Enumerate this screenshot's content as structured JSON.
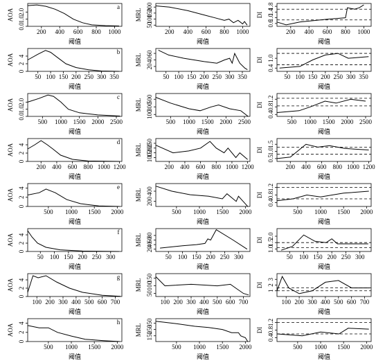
{
  "chart_data": [
    {
      "type": "line",
      "label": "a",
      "ylabel": "AOA",
      "xlabel": "阈值",
      "color": "#000",
      "xlim": [
        50,
        1080
      ],
      "ylim": [
        0,
        3.2
      ],
      "xticks": [
        200,
        400,
        600,
        800,
        1000
      ],
      "yticks": [
        {
          "value": 0,
          "label": "0.0"
        },
        {
          "value": 1,
          "label": "1.0"
        },
        {
          "value": 2,
          "label": "2.0"
        }
      ],
      "x": [
        50,
        150,
        250,
        350,
        450,
        550,
        650,
        750,
        900,
        1050
      ],
      "values": [
        2.9,
        3.0,
        2.8,
        2.4,
        1.8,
        1.0,
        0.5,
        0.2,
        0.1,
        0.05
      ]
    },
    {
      "type": "line",
      "ylabel": "MRL",
      "xlabel": "阈值",
      "color": "#000",
      "xlim": [
        50,
        1080
      ],
      "ylim": [
        40,
        230
      ],
      "xticks": [
        200,
        400,
        600,
        800,
        1000
      ],
      "yticks": [
        50,
        100,
        150,
        200
      ],
      "x": [
        50,
        200,
        400,
        600,
        700,
        800,
        850,
        900,
        950,
        1000,
        1020,
        1050
      ],
      "values": [
        210,
        200,
        170,
        130,
        110,
        90,
        100,
        70,
        90,
        60,
        80,
        50
      ]
    },
    {
      "type": "line",
      "ylabel": "DI",
      "xlabel": "阈值",
      "color": "#000",
      "xlim": [
        50,
        1080
      ],
      "ylim": [
        0.4,
        2.0
      ],
      "xticks": [
        200,
        400,
        600,
        800,
        1000
      ],
      "yticks": [
        0.6,
        {
          "value": 1,
          "label": "1.0"
        },
        1.4,
        1.8
      ],
      "hlines": [
        0.85,
        1.6
      ],
      "x": [
        50,
        150,
        300,
        600,
        800,
        820,
        900,
        950,
        1000
      ],
      "values": [
        0.7,
        0.5,
        0.7,
        0.9,
        1.0,
        1.7,
        1.6,
        1.7,
        1.9
      ]
    },
    {
      "type": "line",
      "label": "b",
      "ylabel": "AOA",
      "xlabel": "阈值",
      "color": "#000",
      "xlim": [
        10,
        380
      ],
      "ylim": [
        0,
        6
      ],
      "xticks": [
        50,
        100,
        150,
        200,
        250,
        300,
        350
      ],
      "yticks": [
        0,
        2,
        4
      ],
      "x": [
        10,
        50,
        80,
        100,
        130,
        160,
        200,
        250,
        300,
        370
      ],
      "values": [
        3,
        4.5,
        5.5,
        5,
        3.5,
        2,
        1,
        0.4,
        0.1,
        0
      ]
    },
    {
      "type": "line",
      "ylabel": "MRL",
      "xlabel": "阈值",
      "color": "#000",
      "xlim": [
        10,
        380
      ],
      "ylim": [
        5,
        75
      ],
      "xticks": [
        50,
        100,
        150,
        200,
        250,
        300,
        350
      ],
      "yticks": [
        20,
        40,
        60
      ],
      "x": [
        20,
        60,
        120,
        200,
        250,
        280,
        300,
        310,
        320,
        340,
        360,
        370
      ],
      "values": [
        70,
        55,
        45,
        35,
        30,
        40,
        45,
        30,
        60,
        30,
        15,
        10
      ]
    },
    {
      "type": "line",
      "ylabel": "DI",
      "xlabel": "阈值",
      "color": "#000",
      "xlim": [
        10,
        380
      ],
      "ylim": [
        0.2,
        1.6
      ],
      "xticks": [
        50,
        100,
        150,
        200,
        250,
        300,
        350
      ],
      "yticks": [
        0.4,
        {
          "value": 1,
          "label": "1.0"
        }
      ],
      "hlines": [
        0.6,
        1.3
      ],
      "x": [
        20,
        100,
        150,
        200,
        250,
        290,
        370
      ],
      "values": [
        0.4,
        0.5,
        0.9,
        1.2,
        1.3,
        1.0,
        1.1
      ]
    },
    {
      "type": "line",
      "label": "c",
      "ylabel": "AOA",
      "xlabel": "阈值",
      "color": "#000",
      "xlim": [
        100,
        2650
      ],
      "ylim": [
        0,
        3.2
      ],
      "xticks": [
        500,
        1000,
        1500,
        2000,
        2500
      ],
      "yticks": [
        {
          "value": 0,
          "label": "0.0"
        },
        {
          "value": 1,
          "label": "1.0"
        },
        {
          "value": 2,
          "label": "2.0"
        }
      ],
      "x": [
        100,
        400,
        650,
        800,
        1000,
        1200,
        1500,
        2000,
        2600
      ],
      "values": [
        2.0,
        2.5,
        3.0,
        2.8,
        2.0,
        1.0,
        0.5,
        0.2,
        0.05
      ]
    },
    {
      "type": "line",
      "ylabel": "MRL",
      "xlabel": "阈值",
      "color": "#000",
      "xlim": [
        100,
        2650
      ],
      "ylim": [
        50,
        650
      ],
      "xticks": [
        500,
        1000,
        1500,
        2000,
        2500
      ],
      "yticks": [
        100,
        300,
        500
      ],
      "x": [
        100,
        500,
        1000,
        1300,
        1600,
        1800,
        2100,
        2400,
        2600
      ],
      "values": [
        550,
        400,
        250,
        200,
        300,
        350,
        250,
        200,
        50
      ]
    },
    {
      "type": "line",
      "ylabel": "DI",
      "xlabel": "阈值",
      "color": "#000",
      "xlim": [
        100,
        2650
      ],
      "ylim": [
        0.3,
        1.5
      ],
      "xticks": [
        500,
        1000,
        1500,
        2000,
        2500
      ],
      "yticks": [
        0.4,
        0.8,
        1.2
      ],
      "hlines": [
        0.85,
        1.25
      ],
      "x": [
        100,
        700,
        1000,
        1400,
        1700,
        2100,
        2500
      ],
      "values": [
        0.5,
        0.6,
        0.8,
        1.1,
        1.0,
        1.2,
        1.1
      ]
    },
    {
      "type": "line",
      "label": "d",
      "ylabel": "AOA",
      "xlabel": "阈值",
      "color": "#000",
      "xlim": [
        30,
        1230
      ],
      "ylim": [
        0,
        5.5
      ],
      "xticks": [
        200,
        400,
        600,
        800,
        1000,
        1200
      ],
      "yticks": [
        0,
        2,
        4
      ],
      "x": [
        30,
        120,
        200,
        280,
        350,
        450,
        600,
        800,
        1200
      ],
      "values": [
        3,
        4,
        5,
        4,
        3,
        1.5,
        0.5,
        0.1,
        0
      ]
    },
    {
      "type": "line",
      "ylabel": "MRL",
      "xlabel": "阈值",
      "color": "#000",
      "xlim": [
        30,
        1230
      ],
      "ylim": [
        60,
        300
      ],
      "xticks": [
        200,
        400,
        600,
        800,
        1000,
        1200
      ],
      "yticks": [
        100,
        150,
        200,
        250
      ],
      "x": [
        30,
        250,
        450,
        600,
        720,
        800,
        900,
        950,
        1050,
        1100,
        1200
      ],
      "values": [
        230,
        150,
        170,
        200,
        270,
        200,
        150,
        200,
        100,
        150,
        80
      ]
    },
    {
      "type": "line",
      "ylabel": "DI",
      "xlabel": "阈值",
      "color": "#000",
      "xlim": [
        30,
        1230
      ],
      "ylim": [
        0.3,
        1.9
      ],
      "xticks": [
        200,
        400,
        600,
        800,
        1000,
        1200
      ],
      "yticks": [
        0.5,
        {
          "value": 1,
          "label": "1.0"
        },
        1.5
      ],
      "hlines": [
        0.8,
        1.3
      ],
      "x": [
        30,
        200,
        400,
        550,
        700,
        900,
        1200
      ],
      "values": [
        0.5,
        0.6,
        1.5,
        1.3,
        1.4,
        1.2,
        1.1
      ]
    },
    {
      "type": "line",
      "label": "e",
      "ylabel": "AOA",
      "xlabel": "阈值",
      "color": "#000",
      "xlim": [
        50,
        2100
      ],
      "ylim": [
        0,
        5
      ],
      "xticks": [
        500,
        1000,
        1500,
        2000
      ],
      "yticks": [
        0,
        2,
        4
      ],
      "x": [
        50,
        300,
        450,
        650,
        900,
        1200,
        1600,
        2050
      ],
      "values": [
        2.5,
        3,
        3.8,
        3,
        1.5,
        0.6,
        0.1,
        0
      ]
    },
    {
      "type": "line",
      "ylabel": "MRL",
      "xlabel": "阈值",
      "color": "#000",
      "xlim": [
        50,
        2100
      ],
      "ylim": [
        100,
        550
      ],
      "xticks": [
        500,
        1000,
        1500,
        2000
      ],
      "yticks": [
        200,
        400
      ],
      "x": [
        50,
        400,
        800,
        1200,
        1500,
        1600,
        1800,
        1850,
        2000,
        2050
      ],
      "values": [
        500,
        400,
        330,
        300,
        250,
        350,
        200,
        300,
        150,
        100
      ]
    },
    {
      "type": "line",
      "ylabel": "DI",
      "xlabel": "阈值",
      "color": "#000",
      "xlim": [
        50,
        2100
      ],
      "ylim": [
        0.2,
        1.4
      ],
      "xticks": [
        500,
        1000,
        1500,
        2000
      ],
      "yticks": [
        0.4,
        0.8,
        1.2
      ],
      "hlines": [
        0.6,
        1.2
      ],
      "x": [
        50,
        400,
        700,
        1000,
        1500,
        2050
      ],
      "values": [
        0.5,
        0.6,
        0.8,
        0.7,
        0.9,
        1.0
      ]
    },
    {
      "type": "line",
      "label": "f",
      "ylabel": "AOA",
      "xlabel": "阈值",
      "color": "#000",
      "xlim": [
        5,
        340
      ],
      "ylim": [
        0,
        5.5
      ],
      "xticks": [
        50,
        100,
        150,
        200,
        250,
        300
      ],
      "yticks": [
        0,
        2,
        4
      ],
      "x": [
        5,
        20,
        40,
        70,
        120,
        200,
        330
      ],
      "values": [
        5,
        3.5,
        2,
        1,
        0.4,
        0.1,
        0
      ]
    },
    {
      "type": "line",
      "ylabel": "MRL",
      "xlabel": "阈值",
      "color": "#000",
      "xlim": [
        5,
        340
      ],
      "ylim": [
        10,
        110
      ],
      "xticks": [
        50,
        100,
        150,
        200,
        250,
        300
      ],
      "yticks": [
        20,
        40,
        60,
        80
      ],
      "x": [
        20,
        100,
        150,
        180,
        190,
        200,
        220,
        280,
        330
      ],
      "values": [
        25,
        35,
        40,
        45,
        65,
        60,
        105,
        60,
        20
      ]
    },
    {
      "type": "line",
      "ylabel": "DI",
      "xlabel": "阈值",
      "color": "#000",
      "xlim": [
        5,
        340
      ],
      "ylim": [
        0.8,
        2.6
      ],
      "xticks": [
        50,
        100,
        150,
        200,
        250,
        300
      ],
      "yticks": [
        {
          "value": 1,
          "label": "1.0"
        },
        1.5,
        {
          "value": 2,
          "label": "2.0"
        }
      ],
      "hlines": [
        1.1,
        1.5
      ],
      "x": [
        20,
        60,
        100,
        140,
        180,
        200,
        220,
        330
      ],
      "values": [
        0.9,
        1.2,
        2.1,
        1.6,
        1.5,
        1.8,
        1.4,
        1.4
      ]
    },
    {
      "type": "line",
      "label": "g",
      "ylabel": "AOA",
      "xlabel": "阈值",
      "color": "#000",
      "xlim": [
        30,
        750
      ],
      "ylim": [
        0,
        5.5
      ],
      "xticks": [
        100,
        200,
        300,
        400,
        500,
        600,
        700
      ],
      "yticks": [
        0,
        2,
        4
      ],
      "x": [
        30,
        70,
        110,
        170,
        250,
        350,
        450,
        600,
        740
      ],
      "values": [
        1,
        5,
        4.5,
        5,
        3.5,
        2,
        1,
        0.3,
        0.05
      ]
    },
    {
      "type": "line",
      "ylabel": "MRL",
      "xlabel": "阈值",
      "color": "#000",
      "xlim": [
        30,
        750
      ],
      "ylim": [
        30,
        180
      ],
      "xticks": [
        100,
        200,
        300,
        400,
        500,
        600,
        700
      ],
      "yticks": [
        50,
        100,
        150
      ],
      "x": [
        30,
        100,
        300,
        500,
        600,
        650,
        700,
        740
      ],
      "values": [
        160,
        100,
        110,
        100,
        110,
        80,
        50,
        40
      ]
    },
    {
      "type": "line",
      "ylabel": "DI",
      "xlabel": "阈值",
      "color": "#000",
      "xlim": [
        30,
        750
      ],
      "ylim": [
        0,
        4
      ],
      "xticks": [
        100,
        200,
        300,
        400,
        500,
        600,
        700
      ],
      "yticks": [
        1,
        2,
        3
      ],
      "hlines": [
        1,
        1.5
      ],
      "x": [
        30,
        70,
        120,
        200,
        300,
        400,
        500,
        600,
        740
      ],
      "values": [
        1,
        3.5,
        1.5,
        0.5,
        1,
        2.5,
        2.8,
        1.5,
        1.5
      ]
    },
    {
      "type": "line",
      "label": "h",
      "ylabel": "AOA",
      "xlabel": "阈值",
      "color": "#000",
      "xlim": [
        50,
        2100
      ],
      "ylim": [
        0,
        5
      ],
      "xticks": [
        500,
        1000,
        1500,
        2000
      ],
      "yticks": [
        0,
        2,
        4
      ],
      "x": [
        50,
        300,
        500,
        700,
        1000,
        1300,
        1700,
        2050
      ],
      "values": [
        3.5,
        3,
        3,
        2,
        1.2,
        0.5,
        0.2,
        0
      ]
    },
    {
      "type": "line",
      "ylabel": "MRL",
      "xlabel": "阈值",
      "color": "#000",
      "xlim": [
        50,
        2100
      ],
      "ylim": [
        60,
        420
      ],
      "xticks": [
        500,
        1000,
        1500,
        2000
      ],
      "yticks": [
        150,
        250,
        350
      ],
      "x": [
        50,
        500,
        900,
        1200,
        1500,
        1700,
        1850,
        1900,
        2000,
        2050
      ],
      "values": [
        380,
        340,
        300,
        280,
        250,
        200,
        200,
        150,
        120,
        60
      ]
    },
    {
      "type": "line",
      "ylabel": "DI",
      "xlabel": "阈值",
      "color": "#000",
      "xlim": [
        50,
        2100
      ],
      "ylim": [
        0.2,
        1.4
      ],
      "xticks": [
        500,
        1000,
        1500,
        2000
      ],
      "yticks": [
        0.4,
        0.8,
        1.2
      ],
      "hlines": [
        0.6,
        1.2
      ],
      "x": [
        50,
        600,
        1000,
        1400,
        1600,
        2050
      ],
      "values": [
        0.6,
        0.5,
        0.7,
        0.6,
        0.9,
        0.85
      ]
    }
  ]
}
